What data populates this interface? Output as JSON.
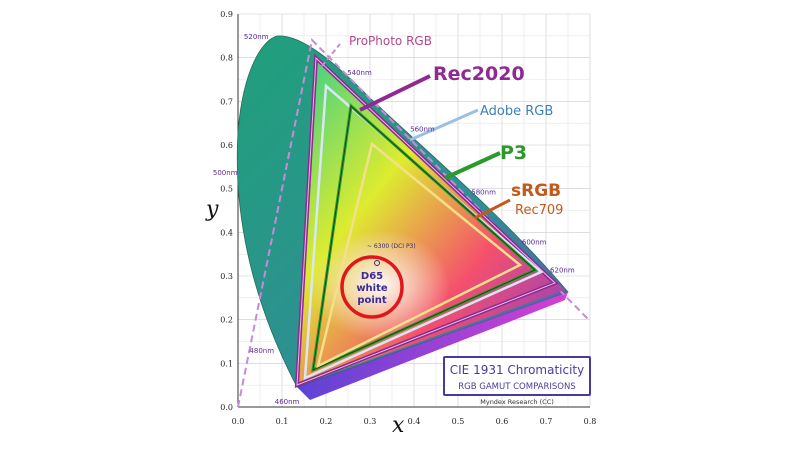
{
  "diagram": {
    "x_axis_letter": "x",
    "y_axis_letter": "y",
    "x_ticks": [
      "0.0",
      "0.1",
      "0.2",
      "0.3",
      "0.4",
      "0.5",
      "0.6",
      "0.7",
      "0.8"
    ],
    "y_ticks": [
      "0.0",
      "0.1",
      "0.2",
      "0.3",
      "0.4",
      "0.5",
      "0.6",
      "0.7",
      "0.8",
      "0.9"
    ],
    "wavelengths": [
      "460nm",
      "480nm",
      "500nm",
      "520nm",
      "540nm",
      "560nm",
      "580nm",
      "600nm",
      "620nm"
    ],
    "gamuts": [
      {
        "name": "ProPhoto RGB",
        "color": "#b0488f"
      },
      {
        "name": "Rec2020",
        "color": "#8e2a92"
      },
      {
        "name": "Adobe RGB",
        "color": "#3f7fb8"
      },
      {
        "name": "P3",
        "color": "#2b9a2b"
      },
      {
        "name": "sRGB",
        "color": "#c25a1c"
      },
      {
        "name": "Rec709",
        "color": "#c25a1c"
      }
    ],
    "dci_label": "~ 6300 (DCI P3)",
    "white_point": [
      "D65",
      "white",
      "point"
    ],
    "highlight_color": "#e0161b",
    "title_box": {
      "title": "CIE 1931 Chromaticity",
      "subtitle": "RGB GAMUT COMPARISONS",
      "credit": "Myndex Research (CC)",
      "color": "#4a3aa0"
    }
  }
}
